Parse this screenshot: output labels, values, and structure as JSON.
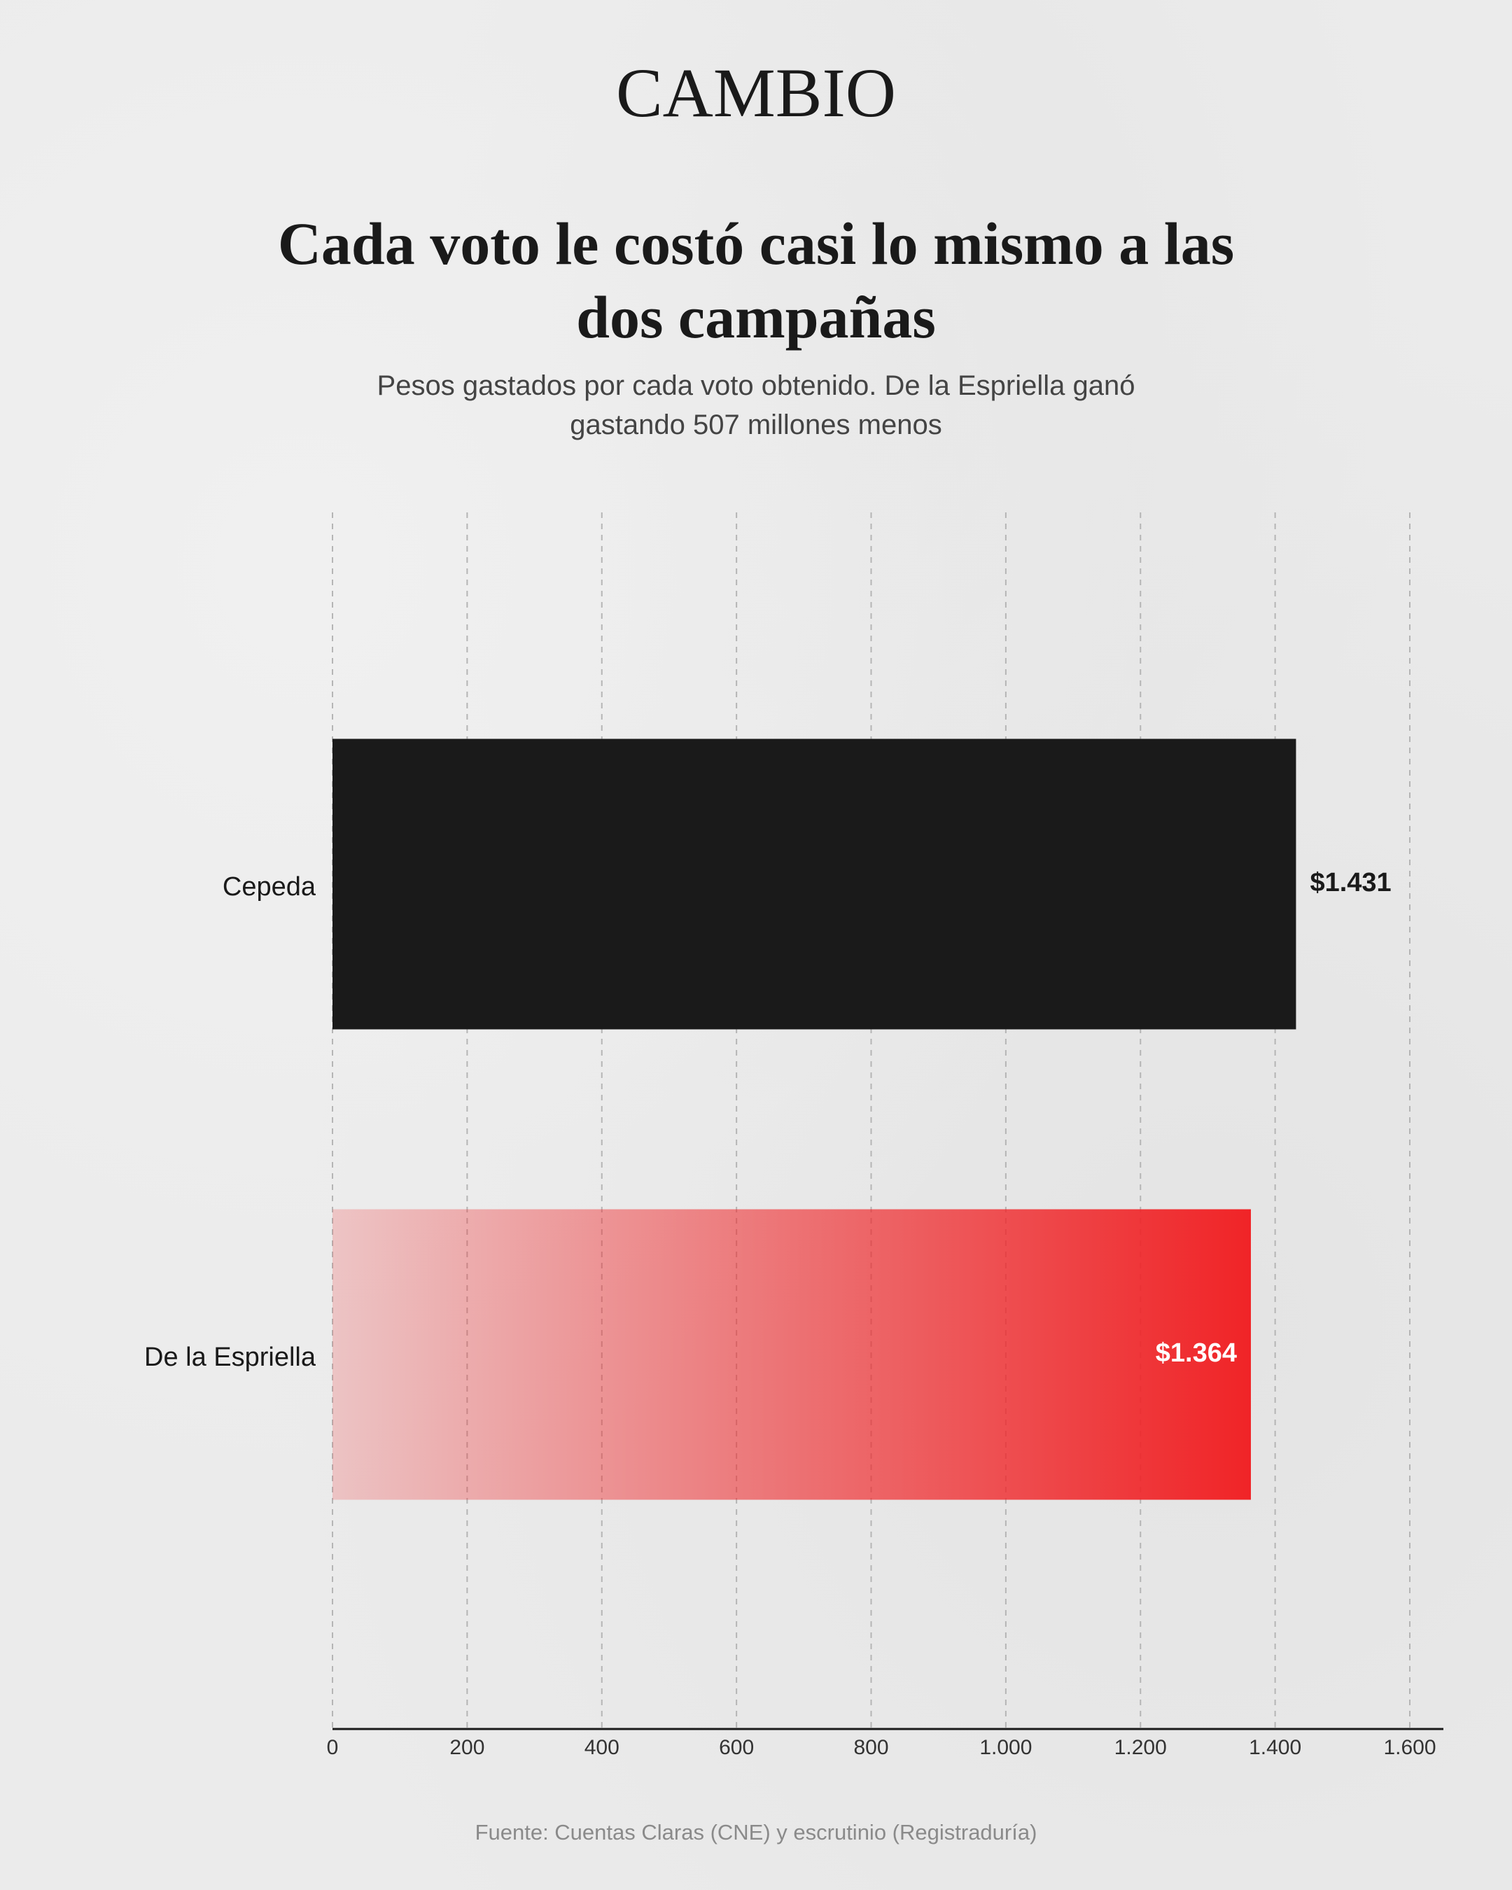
{
  "brand": "CAMBIO",
  "chart_data": {
    "type": "hbar",
    "title": "Cada voto le costó casi lo mismo a las dos campañas",
    "subtitle": "Pesos gastados por cada voto obtenido. De la Espriella ganó gastando 507 millones menos",
    "categories": [
      "Cepeda",
      "De la Espriella"
    ],
    "values": [
      1431,
      1364
    ],
    "value_labels": [
      "$1.431",
      "$1.364"
    ],
    "colors": [
      "#1a1a1a",
      "#f02427"
    ],
    "xlim": [
      0,
      1600
    ],
    "xticks": [
      0,
      200,
      400,
      600,
      800,
      {
        "value": 1000,
        "label": "1.000"
      },
      {
        "value": 1200,
        "label": "1.200"
      },
      {
        "value": 1400,
        "label": "1.400"
      },
      {
        "value": 1600,
        "label": "1.600"
      }
    ],
    "grid": true,
    "source": "Fuente: Cuentas Claras (CNE) y escrutinio (Registraduría)"
  }
}
